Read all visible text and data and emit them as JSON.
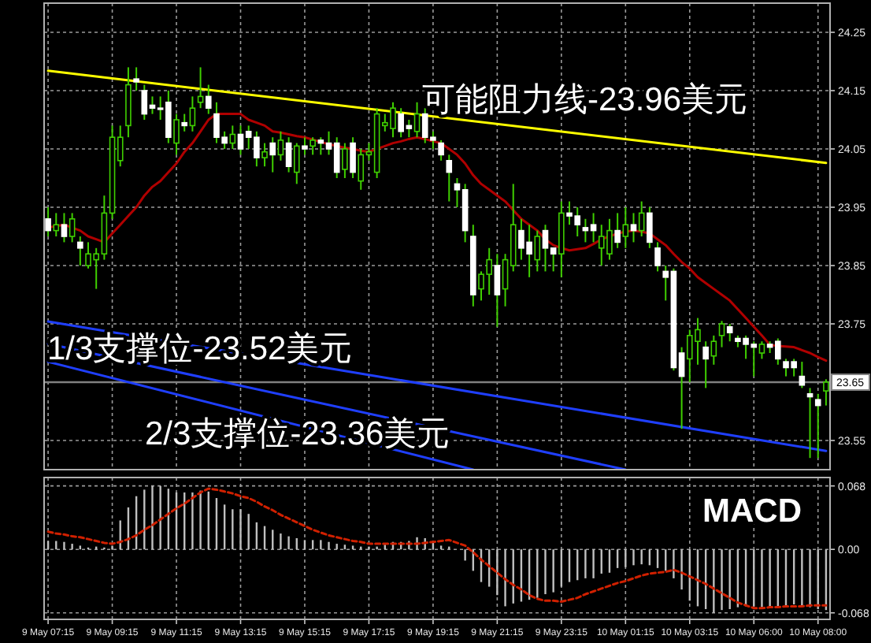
{
  "chart_data": [
    {
      "type": "candlestick",
      "ylim": [
        23.5,
        24.3
      ],
      "yticks": [
        23.55,
        23.75,
        23.85,
        23.95,
        24.05,
        24.15,
        24.25
      ],
      "grid": true,
      "tick_labels": "y",
      "categories": [
        null,
        null,
        null,
        null,
        null,
        null,
        null,
        null,
        null,
        null,
        null,
        null,
        null,
        null,
        null,
        null,
        null,
        null,
        null,
        null,
        null,
        null,
        null,
        null,
        null,
        null,
        null,
        null,
        null,
        null,
        null,
        null,
        null,
        null,
        null,
        null,
        null,
        null,
        null,
        null,
        null,
        null,
        null,
        null,
        null,
        null,
        null,
        null,
        null,
        null,
        null,
        null,
        null,
        null,
        null,
        null,
        null,
        null,
        null,
        null,
        null,
        null,
        null,
        null,
        null,
        null,
        null,
        null,
        null,
        null,
        null,
        null,
        null,
        null,
        null,
        null,
        null,
        null,
        null,
        null,
        null,
        null,
        null,
        null,
        null,
        null,
        null,
        null,
        null,
        null,
        null,
        null,
        null,
        null,
        null,
        null,
        null,
        null
      ],
      "ohlc": [
        [
          23.93,
          23.95,
          23.9,
          23.91
        ],
        [
          23.91,
          23.94,
          23.9,
          23.92
        ],
        [
          23.92,
          23.94,
          23.89,
          23.9
        ],
        [
          23.9,
          23.94,
          23.89,
          23.93
        ],
        [
          23.89,
          23.9,
          23.85,
          23.88
        ],
        [
          23.85,
          23.89,
          23.845,
          23.87
        ],
        [
          23.86,
          23.88,
          23.81,
          23.87
        ],
        [
          23.87,
          23.97,
          23.86,
          23.94
        ],
        [
          23.94,
          24.09,
          23.93,
          24.07
        ],
        [
          24.03,
          24.09,
          24.02,
          24.07
        ],
        [
          24.09,
          24.19,
          24.07,
          24.16
        ],
        [
          24.17,
          24.19,
          24.15,
          24.165
        ],
        [
          24.15,
          24.16,
          24.1,
          24.11
        ],
        [
          24.125,
          24.14,
          24.11,
          24.12
        ],
        [
          24.12,
          24.14,
          24.1,
          24.12
        ],
        [
          24.13,
          24.15,
          24.06,
          24.07
        ],
        [
          24.06,
          24.11,
          24.04,
          24.1
        ],
        [
          24.095,
          24.11,
          24.08,
          24.09
        ],
        [
          24.09,
          24.14,
          24.08,
          24.12
        ],
        [
          24.13,
          24.19,
          24.12,
          24.14
        ],
        [
          24.14,
          24.16,
          24.11,
          24.12
        ],
        [
          24.11,
          24.13,
          24.06,
          24.07
        ],
        [
          24.07,
          24.08,
          24.05,
          24.06
        ],
        [
          24.06,
          24.09,
          24.05,
          24.075
        ],
        [
          24.075,
          24.09,
          24.04,
          24.05
        ],
        [
          24.08,
          24.09,
          24.05,
          24.07
        ],
        [
          24.07,
          24.08,
          24.02,
          24.035
        ],
        [
          24.035,
          24.06,
          24.02,
          24.045
        ],
        [
          24.06,
          24.07,
          24.01,
          24.04
        ],
        [
          24.04,
          24.08,
          24.03,
          24.065
        ],
        [
          24.06,
          24.07,
          24.01,
          24.02
        ],
        [
          24.01,
          24.06,
          23.99,
          24.055
        ],
        [
          24.055,
          24.07,
          24.04,
          24.05
        ],
        [
          24.055,
          24.07,
          24.04,
          24.065
        ],
        [
          24.065,
          24.07,
          24.04,
          24.06
        ],
        [
          24.06,
          24.08,
          24.04,
          24.05
        ],
        [
          24.06,
          24.07,
          24.0,
          24.01
        ],
        [
          24.015,
          24.06,
          24.0,
          24.05
        ],
        [
          24.06,
          24.07,
          24.0,
          24.01
        ],
        [
          23.995,
          24.05,
          23.98,
          24.04
        ],
        [
          24.04,
          24.06,
          24.03,
          24.045
        ],
        [
          24.01,
          24.12,
          24.0,
          24.11
        ],
        [
          24.09,
          24.11,
          24.08,
          24.095
        ],
        [
          24.085,
          24.13,
          24.07,
          24.12
        ],
        [
          24.11,
          24.12,
          24.07,
          24.08
        ],
        [
          24.09,
          24.1,
          24.07,
          24.085
        ],
        [
          24.08,
          24.13,
          24.07,
          24.11
        ],
        [
          24.11,
          24.12,
          24.06,
          24.07
        ],
        [
          24.07,
          24.08,
          24.05,
          24.065
        ],
        [
          24.06,
          24.065,
          24.03,
          24.04
        ],
        [
          24.03,
          24.04,
          23.96,
          24.01
        ],
        [
          23.99,
          24.0,
          23.95,
          23.98
        ],
        [
          23.98,
          23.99,
          23.89,
          23.91
        ],
        [
          23.9,
          23.92,
          23.78,
          23.8
        ],
        [
          23.81,
          23.84,
          23.79,
          23.835
        ],
        [
          23.835,
          23.88,
          23.8,
          23.86
        ],
        [
          23.85,
          23.87,
          23.745,
          23.8
        ],
        [
          23.81,
          23.87,
          23.78,
          23.86
        ],
        [
          23.85,
          23.99,
          23.84,
          23.92
        ],
        [
          23.91,
          23.93,
          23.86,
          23.88
        ],
        [
          23.89,
          23.92,
          23.83,
          23.87
        ],
        [
          23.86,
          23.91,
          23.84,
          23.9
        ],
        [
          23.91,
          23.92,
          23.84,
          23.88
        ],
        [
          23.88,
          23.88,
          23.84,
          23.87
        ],
        [
          23.87,
          23.96,
          23.83,
          23.94
        ],
        [
          23.94,
          23.96,
          23.92,
          23.935
        ],
        [
          23.935,
          23.95,
          23.9,
          23.92
        ],
        [
          23.915,
          23.93,
          23.89,
          23.91
        ],
        [
          23.92,
          23.94,
          23.89,
          23.91
        ],
        [
          23.88,
          23.92,
          23.85,
          23.9
        ],
        [
          23.87,
          23.93,
          23.86,
          23.91
        ],
        [
          23.91,
          23.94,
          23.88,
          23.89
        ],
        [
          23.9,
          23.95,
          23.88,
          23.92
        ],
        [
          23.92,
          23.94,
          23.89,
          23.91
        ],
        [
          23.91,
          23.96,
          23.9,
          23.94
        ],
        [
          23.94,
          23.95,
          23.88,
          23.89
        ],
        [
          23.88,
          23.89,
          23.84,
          23.85
        ],
        [
          23.84,
          23.85,
          23.79,
          23.83
        ],
        [
          23.84,
          23.845,
          23.67,
          23.675
        ],
        [
          23.7,
          23.71,
          23.57,
          23.66
        ],
        [
          23.69,
          23.74,
          23.65,
          23.73
        ],
        [
          23.72,
          23.76,
          23.68,
          23.74
        ],
        [
          23.71,
          23.72,
          23.64,
          23.69
        ],
        [
          23.695,
          23.73,
          23.68,
          23.72
        ],
        [
          23.73,
          23.755,
          23.71,
          23.75
        ],
        [
          23.745,
          23.75,
          23.72,
          23.735
        ],
        [
          23.725,
          23.73,
          23.71,
          23.72
        ],
        [
          23.725,
          23.73,
          23.69,
          23.715
        ],
        [
          23.715,
          23.72,
          23.66,
          23.71
        ],
        [
          23.7,
          23.72,
          23.69,
          23.715
        ],
        [
          23.715,
          23.72,
          23.7,
          23.71
        ],
        [
          23.72,
          23.725,
          23.68,
          23.69
        ],
        [
          23.685,
          23.69,
          23.66,
          23.675
        ],
        [
          23.685,
          23.69,
          23.66,
          23.675
        ],
        [
          23.66,
          23.685,
          23.64,
          23.645
        ],
        [
          23.63,
          23.64,
          23.52,
          23.625
        ],
        [
          23.62,
          23.63,
          23.52,
          23.61
        ],
        [
          23.635,
          23.655,
          23.61,
          23.65
        ]
      ],
      "series": [
        {
          "type": "line",
          "color": "#b00000",
          "values": [
            23.915,
            23.918,
            23.92,
            23.915,
            23.91,
            23.9,
            23.895,
            23.89,
            23.905,
            23.92,
            23.935,
            23.95,
            23.97,
            23.985,
            23.995,
            24.01,
            24.025,
            24.045,
            24.06,
            24.08,
            24.1,
            24.11,
            24.11,
            24.11,
            24.11,
            24.1,
            24.095,
            24.09,
            24.08,
            24.078,
            24.075,
            24.072,
            24.07,
            24.066,
            24.062,
            24.058,
            24.055,
            24.052,
            24.05,
            24.047,
            24.045,
            24.05,
            24.055,
            24.06,
            24.063,
            24.067,
            24.07,
            24.067,
            24.063,
            24.06,
            24.05,
            24.04,
            24.025,
            24.005,
            23.99,
            23.98,
            23.97,
            23.96,
            23.945,
            23.93,
            23.92,
            23.91,
            23.895,
            23.885,
            23.88,
            23.876,
            23.878,
            23.88,
            23.887,
            23.895,
            23.9,
            23.905,
            23.908,
            23.91,
            23.908,
            23.905,
            23.895,
            23.885,
            23.87,
            23.856,
            23.845,
            23.83,
            23.82,
            23.81,
            23.8,
            23.79,
            23.775,
            23.76,
            23.745,
            23.73,
            23.714,
            23.712,
            23.711,
            23.71,
            23.705,
            23.7,
            23.693,
            23.687
          ]
        },
        {
          "type": "line",
          "color": "#ffff00",
          "values": [
            24.184,
            null,
            null,
            null,
            null,
            null,
            null,
            null,
            null,
            null,
            null,
            null,
            null,
            null,
            null,
            null,
            null,
            null,
            null,
            null,
            null,
            null,
            null,
            null,
            null,
            null,
            null,
            null,
            null,
            null,
            null,
            null,
            null,
            null,
            null,
            null,
            null,
            null,
            null,
            null,
            null,
            null,
            null,
            null,
            null,
            null,
            null,
            null,
            null,
            null,
            null,
            null,
            null,
            null,
            null,
            null,
            null,
            null,
            null,
            null,
            null,
            null,
            null,
            null,
            null,
            null,
            null,
            null,
            null,
            null,
            null,
            null,
            null,
            null,
            null,
            null,
            null,
            null,
            null,
            null,
            null,
            null,
            null,
            null,
            null,
            null,
            null,
            null,
            null,
            null,
            null,
            null,
            null,
            null,
            null,
            null,
            null,
            24.026
          ]
        },
        {
          "type": "line",
          "color": "#1f3fff",
          "values": [
            23.754,
            null,
            null,
            null,
            null,
            null,
            null,
            null,
            null,
            null,
            null,
            null,
            null,
            null,
            null,
            null,
            null,
            null,
            null,
            null,
            null,
            null,
            null,
            null,
            null,
            null,
            null,
            null,
            null,
            null,
            null,
            null,
            null,
            null,
            null,
            null,
            null,
            null,
            null,
            null,
            null,
            null,
            null,
            null,
            null,
            null,
            null,
            null,
            null,
            null,
            null,
            null,
            null,
            null,
            null,
            null,
            null,
            null,
            null,
            null,
            null,
            null,
            null,
            null,
            null,
            null,
            null,
            null,
            null,
            null,
            null,
            null,
            null,
            null,
            null,
            null,
            null,
            null,
            null,
            null,
            null,
            null,
            null,
            null,
            null,
            null,
            null,
            null,
            null,
            null,
            null,
            null,
            null,
            null,
            null,
            null,
            null,
            23.532
          ]
        },
        {
          "type": "line",
          "color": "#1f3fff",
          "values": [
            23.716,
            null,
            null,
            null,
            null,
            null,
            null,
            null,
            null,
            null,
            null,
            null,
            null,
            null,
            null,
            null,
            null,
            null,
            null,
            null,
            null,
            null,
            null,
            null,
            null,
            null,
            null,
            null,
            null,
            null,
            null,
            null,
            null,
            null,
            null,
            null,
            null,
            null,
            null,
            null,
            null,
            null,
            null,
            null,
            null,
            null,
            null,
            null,
            null,
            null,
            null,
            null,
            null,
            null,
            null,
            null,
            null,
            null,
            null,
            null,
            null,
            null,
            null,
            null,
            null,
            null,
            null,
            null,
            null,
            null,
            null,
            null,
            23.5,
            null,
            null,
            null,
            null,
            null,
            null,
            null,
            null,
            null,
            null,
            null,
            null,
            null,
            null,
            null,
            null,
            null,
            null,
            null,
            null,
            null,
            null,
            null,
            null,
            null
          ]
        },
        {
          "type": "line",
          "color": "#1f3fff",
          "values": [
            23.685,
            null,
            null,
            null,
            null,
            null,
            null,
            null,
            null,
            null,
            null,
            null,
            null,
            null,
            null,
            null,
            null,
            null,
            null,
            null,
            null,
            null,
            null,
            null,
            null,
            null,
            null,
            null,
            null,
            null,
            null,
            null,
            null,
            null,
            null,
            null,
            null,
            null,
            null,
            null,
            null,
            null,
            null,
            null,
            null,
            null,
            null,
            null,
            null,
            null,
            null,
            null,
            null,
            23.5,
            null,
            null,
            null,
            null,
            null,
            null,
            null,
            null,
            null,
            null,
            null,
            null,
            null,
            null,
            null,
            null,
            null,
            null,
            null,
            null,
            null,
            null,
            null,
            null,
            null,
            null,
            null,
            null,
            null,
            null,
            null,
            null,
            null,
            null,
            null,
            null,
            null,
            null,
            null,
            null,
            null,
            null,
            null,
            null
          ]
        }
      ],
      "ref_lines": [
        {
          "axis": "y",
          "value": 23.65,
          "label": "23.65",
          "color": "#808080"
        }
      ],
      "annotations": [
        "可能阻力线-23.96美元",
        "1/3支撑位-23.52美元",
        "2/3支撑位-23.36美元"
      ]
    },
    {
      "type": "bar",
      "ylim": [
        -0.075,
        0.077
      ],
      "yticks": [
        0.068,
        {
          "value": 0,
          "label": "0.00"
        },
        -0.068
      ],
      "grid": true,
      "categories": [
        "9 May 07:15",
        null,
        null,
        null,
        null,
        null,
        null,
        null,
        "9 May 09:15",
        null,
        null,
        null,
        null,
        null,
        null,
        null,
        "9 May 11:15",
        null,
        null,
        null,
        null,
        null,
        null,
        null,
        "9 May 13:15",
        null,
        null,
        null,
        null,
        null,
        null,
        null,
        "9 May 15:15",
        null,
        null,
        null,
        null,
        null,
        null,
        null,
        "9 May 17:15",
        null,
        null,
        null,
        null,
        null,
        null,
        null,
        "9 May 19:15",
        null,
        null,
        null,
        null,
        null,
        null,
        null,
        "9 May 21:15",
        null,
        null,
        null,
        null,
        null,
        null,
        null,
        "9 May 23:15",
        null,
        null,
        null,
        null,
        null,
        null,
        null,
        "10 May 01:15",
        null,
        null,
        null,
        null,
        null,
        null,
        null,
        "10 May 03:15",
        null,
        null,
        null,
        null,
        null,
        null,
        null,
        "10 May 06:00",
        null,
        null,
        null,
        null,
        null,
        null,
        null,
        "10 May 08:00",
        null
      ],
      "series": [
        {
          "type": "bar",
          "color": "#c0c0c0",
          "values": [
            0.009,
            0.009,
            0.008,
            0.006,
            0.004,
            0.002,
            0.003,
            0.002,
            0.004,
            0.031,
            0.045,
            0.057,
            0.064,
            0.068,
            0.068,
            0.065,
            0.061,
            0.061,
            0.061,
            0.063,
            0.062,
            0.055,
            0.048,
            0.043,
            0.043,
            0.038,
            0.029,
            0.025,
            0.021,
            0.017,
            0.014,
            0.012,
            0.01,
            0.01,
            0.01,
            0.008,
            0.006,
            0.005,
            0.004,
            0.003,
            0.003,
            0.003,
            0.005,
            0.008,
            0.008,
            0.009,
            0.013,
            0.012,
            0.009,
            0.004,
            0.003,
            0,
            -0.012,
            -0.023,
            -0.035,
            -0.04,
            -0.049,
            -0.061,
            -0.058,
            -0.056,
            -0.054,
            -0.052,
            -0.048,
            -0.046,
            -0.04,
            -0.035,
            -0.033,
            -0.031,
            -0.031,
            -0.026,
            -0.025,
            -0.02,
            -0.019,
            -0.017,
            -0.016,
            -0.017,
            -0.02,
            -0.023,
            -0.031,
            -0.043,
            -0.055,
            -0.061,
            -0.064,
            -0.068,
            -0.065,
            -0.064,
            -0.062,
            -0.061,
            -0.061,
            -0.062,
            -0.062,
            -0.061,
            -0.061,
            -0.059,
            -0.061,
            -0.062,
            -0.064,
            -0.065
          ]
        },
        {
          "type": "line",
          "color": "#d02000",
          "line_style": "dashed",
          "values": [
            0.019,
            0.017,
            0.016,
            0.014,
            0.013,
            0.011,
            0.009,
            0.007,
            0.006,
            0.008,
            0.011,
            0.015,
            0.021,
            0.026,
            0.032,
            0.038,
            0.044,
            0.049,
            0.055,
            0.061,
            0.065,
            0.064,
            0.062,
            0.06,
            0.057,
            0.055,
            0.051,
            0.046,
            0.042,
            0.037,
            0.033,
            0.029,
            0.025,
            0.021,
            0.018,
            0.015,
            0.013,
            0.011,
            0.009,
            0.008,
            0.006,
            0.006,
            0.006,
            0.006,
            0.006,
            0.006,
            0.006,
            0.007,
            0.008,
            0.009,
            0.01,
            0.007,
            0.004,
            -0.003,
            -0.011,
            -0.018,
            -0.025,
            -0.032,
            -0.038,
            -0.043,
            -0.049,
            -0.053,
            -0.055,
            -0.055,
            -0.056,
            -0.054,
            -0.052,
            -0.048,
            -0.045,
            -0.042,
            -0.039,
            -0.036,
            -0.034,
            -0.031,
            -0.028,
            -0.026,
            -0.025,
            -0.024,
            -0.022,
            -0.025,
            -0.029,
            -0.033,
            -0.037,
            -0.042,
            -0.047,
            -0.052,
            -0.057,
            -0.06,
            -0.063,
            -0.063,
            -0.062,
            -0.062,
            -0.061,
            -0.061,
            -0.061,
            -0.06,
            -0.06,
            -0.06
          ]
        }
      ],
      "annotations": [
        "MACD"
      ]
    }
  ]
}
